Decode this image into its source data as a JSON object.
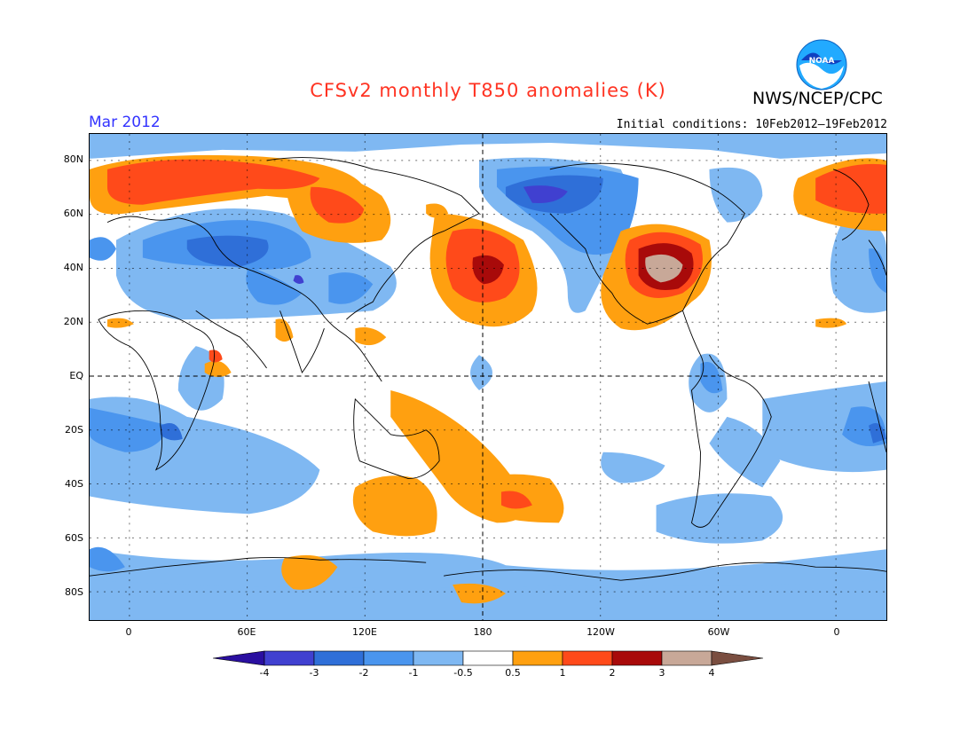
{
  "header": {
    "title": "CFSv2 monthly T850 anomalies (K)",
    "agency": "NWS/NCEP/CPC",
    "logo_text": "NOAA",
    "month": "Mar 2012",
    "initial_conditions": "Initial conditions: 10Feb2012–19Feb2012"
  },
  "axes": {
    "lat_labels": [
      "80N",
      "60N",
      "40N",
      "20N",
      "EQ",
      "20S",
      "40S",
      "60S",
      "80S"
    ],
    "lon_labels": [
      "0",
      "60E",
      "120E",
      "180",
      "120W",
      "60W",
      "0"
    ]
  },
  "colorbar": {
    "labels": [
      "-4",
      "-3",
      "-2",
      "-1",
      "-0.5",
      "0.5",
      "1",
      "2",
      "3",
      "4"
    ],
    "colors": [
      "#2a0fa0",
      "#4040d0",
      "#2f6fd8",
      "#4a95ee",
      "#7fb8f2",
      "#ffffff",
      "#ffa010",
      "#ff4a1a",
      "#a80a0a",
      "#c8a898",
      "#7a4e40"
    ]
  },
  "colors": {
    "title": "#ff3322",
    "month": "#3333ff",
    "ocean_base": "#ffffff"
  }
}
